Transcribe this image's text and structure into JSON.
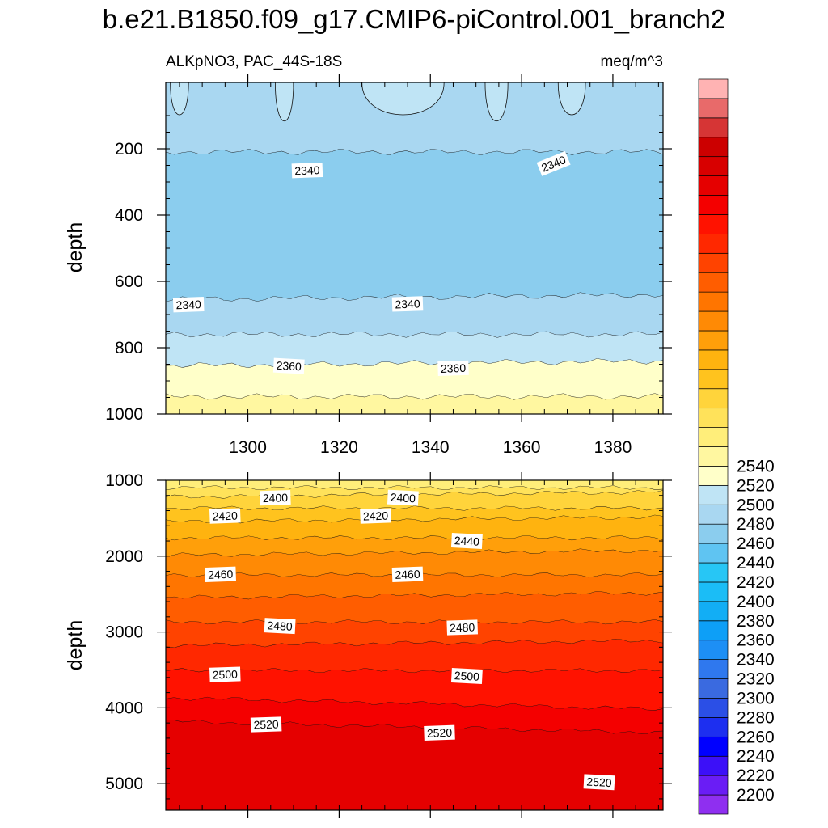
{
  "chart_data": {
    "type": "contour",
    "title": "b.e21.B1850.f09_g17.CMIP6-piControl.001_branch2",
    "variable": "ALKpNO3, PAC_44S-18S",
    "units": "meq/m^3",
    "ylabel": "depth",
    "xlabel": "",
    "x_range": [
      1282,
      1391
    ],
    "x_ticks": [
      "1300",
      "1320",
      "1340",
      "1360",
      "1380"
    ],
    "panels": [
      {
        "name": "upper",
        "ylim": [
          0,
          1000
        ],
        "y_ticks": [
          "200",
          "400",
          "600",
          "800",
          "1000"
        ],
        "bands": [
          {
            "from": 0,
            "to": 210,
            "level": 2340
          },
          {
            "from": 210,
            "to": 655,
            "level": 2330
          },
          {
            "from": 655,
            "to": 760,
            "level": 2340
          },
          {
            "from": 760,
            "to": 855,
            "level": 2350
          },
          {
            "from": 855,
            "to": 948,
            "level": 2360
          },
          {
            "from": 948,
            "to": 1000,
            "level": 2370
          }
        ],
        "contour_labels": [
          {
            "text": "2340",
            "x": 1313,
            "depth": 265
          },
          {
            "text": "2340",
            "x": 1367,
            "depth": 245
          },
          {
            "text": "2340",
            "x": 1287,
            "depth": 670
          },
          {
            "text": "2340",
            "x": 1335,
            "depth": 668
          },
          {
            "text": "2360",
            "x": 1309,
            "depth": 855
          },
          {
            "text": "2360",
            "x": 1345,
            "depth": 862
          }
        ]
      },
      {
        "name": "lower",
        "ylim": [
          1000,
          5350
        ],
        "y_ticks": [
          "1000",
          "2000",
          "3000",
          "4000",
          "5000"
        ],
        "bands": [
          {
            "from": 1000,
            "to": 1100,
            "level": 2380
          },
          {
            "from": 1100,
            "to": 1220,
            "level": 2390
          },
          {
            "from": 1220,
            "to": 1370,
            "level": 2400
          },
          {
            "from": 1370,
            "to": 1550,
            "level": 2410
          },
          {
            "from": 1550,
            "to": 1760,
            "level": 2420
          },
          {
            "from": 1760,
            "to": 1990,
            "level": 2430
          },
          {
            "from": 1990,
            "to": 2250,
            "level": 2440
          },
          {
            "from": 2250,
            "to": 2550,
            "level": 2450
          },
          {
            "from": 2550,
            "to": 2870,
            "level": 2460
          },
          {
            "from": 2870,
            "to": 3180,
            "level": 2470
          },
          {
            "from": 3180,
            "to": 3510,
            "level": 2480
          },
          {
            "from": 3510,
            "to": 3870,
            "level": 2490
          },
          {
            "from": 3870,
            "to": 4180,
            "level": 2500
          },
          {
            "from": 4180,
            "to": 5350,
            "level": 2510
          }
        ],
        "contour_labels": [
          {
            "text": "2400",
            "x": 1306,
            "depth": 1230
          },
          {
            "text": "2400",
            "x": 1334,
            "depth": 1230
          },
          {
            "text": "2420",
            "x": 1295,
            "depth": 1470
          },
          {
            "text": "2420",
            "x": 1328,
            "depth": 1470
          },
          {
            "text": "2440",
            "x": 1348,
            "depth": 1800
          },
          {
            "text": "2460",
            "x": 1294,
            "depth": 2240
          },
          {
            "text": "2460",
            "x": 1335,
            "depth": 2240
          },
          {
            "text": "2480",
            "x": 1307,
            "depth": 2920
          },
          {
            "text": "2480",
            "x": 1347,
            "depth": 2940
          },
          {
            "text": "2500",
            "x": 1295,
            "depth": 3560
          },
          {
            "text": "2500",
            "x": 1348,
            "depth": 3580
          },
          {
            "text": "2520",
            "x": 1304,
            "depth": 4220
          },
          {
            "text": "2520",
            "x": 1342,
            "depth": 4330
          },
          {
            "text": "2520",
            "x": 1377,
            "depth": 4980
          }
        ]
      }
    ],
    "colorbar": {
      "tick_labels": [
        "2200",
        "2220",
        "2240",
        "2260",
        "2280",
        "2300",
        "2320",
        "2340",
        "2360",
        "2380",
        "2400",
        "2420",
        "2440",
        "2460",
        "2480",
        "2500",
        "2520",
        "2540"
      ],
      "colors": [
        "#8f2ff0",
        "#6a1df5",
        "#3c10f8",
        "#0000ff",
        "#1d2ff0",
        "#2b4fe6",
        "#3a6ae0",
        "#2f78ee",
        "#1d8ff5",
        "#0d9ff7",
        "#12aef5",
        "#1bbdf6",
        "#27c6f5",
        "#5fc4f2",
        "#8bcdee",
        "#a9d7f1",
        "#bfe4f5",
        "#ffffc9",
        "#fff7a0",
        "#ffee7a",
        "#ffe25a",
        "#ffd43b",
        "#ffc31e",
        "#ffb30f",
        "#ff9f0a",
        "#ff8a05",
        "#ff7500",
        "#ff5d00",
        "#ff4300",
        "#ff2800",
        "#ff1200",
        "#f40000",
        "#e50000",
        "#d80000",
        "#cc0000",
        "#d63535",
        "#e86a6a",
        "#ffb3b3"
      ]
    }
  }
}
